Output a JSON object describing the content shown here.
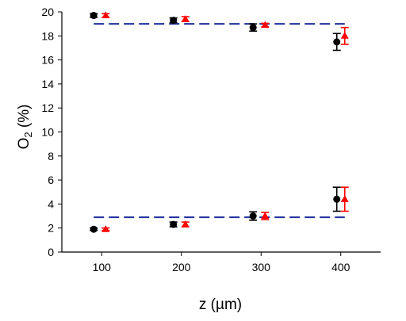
{
  "chart_data": {
    "type": "scatter",
    "xlabel": "z  (µm)",
    "ylabel_main": "O",
    "ylabel_sub": "2",
    "ylabel_rest": " (%)",
    "x_ticks": [
      "100",
      "200",
      "300",
      "400"
    ],
    "y_ticks": [
      "0",
      "2",
      "4",
      "6",
      "8",
      "10",
      "12",
      "14",
      "16",
      "18",
      "20"
    ],
    "xlim": [
      50,
      450
    ],
    "ylim": [
      0,
      20
    ],
    "reference_lines": [
      {
        "y": 19.0,
        "x_start": 90,
        "x_end": 405,
        "color": "#1f2f9a",
        "dash": true
      },
      {
        "y": 2.9,
        "x_start": 90,
        "x_end": 405,
        "color": "#1f2f9a",
        "dash": true
      }
    ],
    "series": [
      {
        "color": "#000000",
        "marker": "circle",
        "points": [
          {
            "x": 90,
            "y": 19.7,
            "err": 0.15
          },
          {
            "x": 190,
            "y": 19.3,
            "err": 0.2
          },
          {
            "x": 290,
            "y": 18.7,
            "err": 0.3
          },
          {
            "x": 395,
            "y": 17.5,
            "err": 0.7
          },
          {
            "x": 90,
            "y": 1.9,
            "err": 0.1
          },
          {
            "x": 190,
            "y": 2.3,
            "err": 0.2
          },
          {
            "x": 290,
            "y": 3.0,
            "err": 0.35
          },
          {
            "x": 395,
            "y": 4.4,
            "err": 1.0
          }
        ]
      },
      {
        "color": "#ff0000",
        "marker": "triangle",
        "points": [
          {
            "x": 105,
            "y": 19.7,
            "err": 0.15
          },
          {
            "x": 205,
            "y": 19.4,
            "err": 0.2
          },
          {
            "x": 305,
            "y": 18.9,
            "err": 0.15
          },
          {
            "x": 405,
            "y": 18.0,
            "err": 0.7
          },
          {
            "x": 105,
            "y": 1.9,
            "err": 0.1
          },
          {
            "x": 205,
            "y": 2.3,
            "err": 0.2
          },
          {
            "x": 305,
            "y": 3.0,
            "err": 0.3
          },
          {
            "x": 405,
            "y": 4.4,
            "err": 1.0
          }
        ]
      }
    ]
  }
}
